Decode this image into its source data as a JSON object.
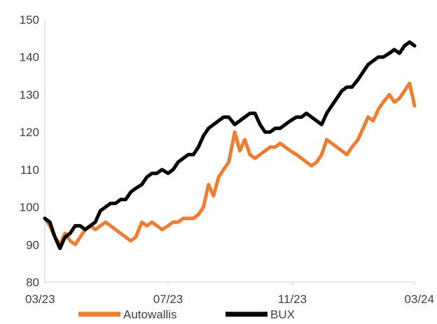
{
  "chart_data": {
    "type": "line",
    "title": "",
    "xlabel": "",
    "ylabel": "",
    "ylim": [
      80,
      150
    ],
    "yticks": [
      80,
      90,
      100,
      110,
      120,
      130,
      140,
      150
    ],
    "xlim": [
      "2023-03-01",
      "2024-03-01"
    ],
    "xticks": [
      {
        "x": "2023-03-01",
        "label": "03/23"
      },
      {
        "x": "2023-07-01",
        "label": "07/23"
      },
      {
        "x": "2023-11-01",
        "label": "11/23"
      },
      {
        "x": "2024-03-01",
        "label": "03/24"
      }
    ],
    "grid": false,
    "legend": "bottom",
    "series": [
      {
        "name": "Autowallis",
        "color": "#ED7D31",
        "points": [
          [
            "2023-03-01",
            97
          ],
          [
            "2023-03-06",
            95
          ],
          [
            "2023-03-11",
            92
          ],
          [
            "2023-03-16",
            90
          ],
          [
            "2023-03-21",
            93
          ],
          [
            "2023-03-26",
            91
          ],
          [
            "2023-03-31",
            90
          ],
          [
            "2023-04-05",
            92
          ],
          [
            "2023-04-10",
            94
          ],
          [
            "2023-04-15",
            95
          ],
          [
            "2023-04-20",
            94
          ],
          [
            "2023-04-25",
            95
          ],
          [
            "2023-04-30",
            96
          ],
          [
            "2023-05-05",
            95
          ],
          [
            "2023-05-10",
            94
          ],
          [
            "2023-05-15",
            93
          ],
          [
            "2023-05-20",
            92
          ],
          [
            "2023-05-25",
            91
          ],
          [
            "2023-05-30",
            92
          ],
          [
            "2023-06-05",
            96
          ],
          [
            "2023-06-10",
            95
          ],
          [
            "2023-06-15",
            96
          ],
          [
            "2023-06-20",
            95
          ],
          [
            "2023-06-25",
            94
          ],
          [
            "2023-07-01",
            95
          ],
          [
            "2023-07-06",
            96
          ],
          [
            "2023-07-11",
            96
          ],
          [
            "2023-07-16",
            97
          ],
          [
            "2023-07-21",
            97
          ],
          [
            "2023-07-26",
            97
          ],
          [
            "2023-07-31",
            98
          ],
          [
            "2023-08-05",
            100
          ],
          [
            "2023-08-10",
            106
          ],
          [
            "2023-08-15",
            103
          ],
          [
            "2023-08-20",
            108
          ],
          [
            "2023-08-25",
            110
          ],
          [
            "2023-08-30",
            112
          ],
          [
            "2023-09-05",
            120
          ],
          [
            "2023-09-10",
            115
          ],
          [
            "2023-09-15",
            118
          ],
          [
            "2023-09-20",
            114
          ],
          [
            "2023-09-25",
            113
          ],
          [
            "2023-09-30",
            114
          ],
          [
            "2023-10-05",
            115
          ],
          [
            "2023-10-10",
            116
          ],
          [
            "2023-10-15",
            116
          ],
          [
            "2023-10-20",
            117
          ],
          [
            "2023-10-25",
            116
          ],
          [
            "2023-10-30",
            115
          ],
          [
            "2023-11-05",
            114
          ],
          [
            "2023-11-10",
            113
          ],
          [
            "2023-11-15",
            112
          ],
          [
            "2023-11-20",
            111
          ],
          [
            "2023-11-25",
            112
          ],
          [
            "2023-11-30",
            114
          ],
          [
            "2023-12-05",
            118
          ],
          [
            "2023-12-10",
            117
          ],
          [
            "2023-12-15",
            116
          ],
          [
            "2023-12-20",
            115
          ],
          [
            "2023-12-25",
            114
          ],
          [
            "2023-12-30",
            116
          ],
          [
            "2024-01-05",
            118
          ],
          [
            "2024-01-10",
            121
          ],
          [
            "2024-01-15",
            124
          ],
          [
            "2024-01-20",
            123
          ],
          [
            "2024-01-25",
            126
          ],
          [
            "2024-01-30",
            128
          ],
          [
            "2024-02-05",
            130
          ],
          [
            "2024-02-10",
            128
          ],
          [
            "2024-02-15",
            129
          ],
          [
            "2024-02-20",
            131
          ],
          [
            "2024-02-25",
            133
          ],
          [
            "2024-03-01",
            127
          ]
        ]
      },
      {
        "name": "BUX",
        "color": "#000000",
        "points": [
          [
            "2023-03-01",
            97
          ],
          [
            "2023-03-06",
            96
          ],
          [
            "2023-03-11",
            92
          ],
          [
            "2023-03-16",
            89
          ],
          [
            "2023-03-21",
            92
          ],
          [
            "2023-03-26",
            93
          ],
          [
            "2023-03-31",
            95
          ],
          [
            "2023-04-05",
            95
          ],
          [
            "2023-04-10",
            94
          ],
          [
            "2023-04-15",
            95
          ],
          [
            "2023-04-20",
            96
          ],
          [
            "2023-04-25",
            99
          ],
          [
            "2023-04-30",
            100
          ],
          [
            "2023-05-05",
            101
          ],
          [
            "2023-05-10",
            101
          ],
          [
            "2023-05-15",
            102
          ],
          [
            "2023-05-20",
            102
          ],
          [
            "2023-05-25",
            104
          ],
          [
            "2023-05-30",
            105
          ],
          [
            "2023-06-05",
            106
          ],
          [
            "2023-06-10",
            108
          ],
          [
            "2023-06-15",
            109
          ],
          [
            "2023-06-20",
            109
          ],
          [
            "2023-06-25",
            110
          ],
          [
            "2023-07-01",
            109
          ],
          [
            "2023-07-06",
            110
          ],
          [
            "2023-07-11",
            112
          ],
          [
            "2023-07-16",
            113
          ],
          [
            "2023-07-21",
            114
          ],
          [
            "2023-07-26",
            114
          ],
          [
            "2023-07-31",
            116
          ],
          [
            "2023-08-05",
            119
          ],
          [
            "2023-08-10",
            121
          ],
          [
            "2023-08-15",
            122
          ],
          [
            "2023-08-20",
            123
          ],
          [
            "2023-08-25",
            124
          ],
          [
            "2023-08-30",
            124
          ],
          [
            "2023-09-05",
            122
          ],
          [
            "2023-09-10",
            123
          ],
          [
            "2023-09-15",
            124
          ],
          [
            "2023-09-20",
            125
          ],
          [
            "2023-09-25",
            125
          ],
          [
            "2023-09-30",
            122
          ],
          [
            "2023-10-05",
            120
          ],
          [
            "2023-10-10",
            120
          ],
          [
            "2023-10-15",
            121
          ],
          [
            "2023-10-20",
            121
          ],
          [
            "2023-10-25",
            122
          ],
          [
            "2023-10-30",
            123
          ],
          [
            "2023-11-05",
            124
          ],
          [
            "2023-11-10",
            124
          ],
          [
            "2023-11-15",
            125
          ],
          [
            "2023-11-20",
            124
          ],
          [
            "2023-11-25",
            123
          ],
          [
            "2023-11-30",
            122
          ],
          [
            "2023-12-05",
            125
          ],
          [
            "2023-12-10",
            127
          ],
          [
            "2023-12-15",
            129
          ],
          [
            "2023-12-20",
            131
          ],
          [
            "2023-12-25",
            132
          ],
          [
            "2023-12-30",
            132
          ],
          [
            "2024-01-05",
            134
          ],
          [
            "2024-01-10",
            136
          ],
          [
            "2024-01-15",
            138
          ],
          [
            "2024-01-20",
            139
          ],
          [
            "2024-01-25",
            140
          ],
          [
            "2024-01-30",
            140
          ],
          [
            "2024-02-05",
            141
          ],
          [
            "2024-02-10",
            142
          ],
          [
            "2024-02-15",
            141
          ],
          [
            "2024-02-20",
            143
          ],
          [
            "2024-02-25",
            144
          ],
          [
            "2024-03-01",
            143
          ]
        ]
      }
    ]
  }
}
